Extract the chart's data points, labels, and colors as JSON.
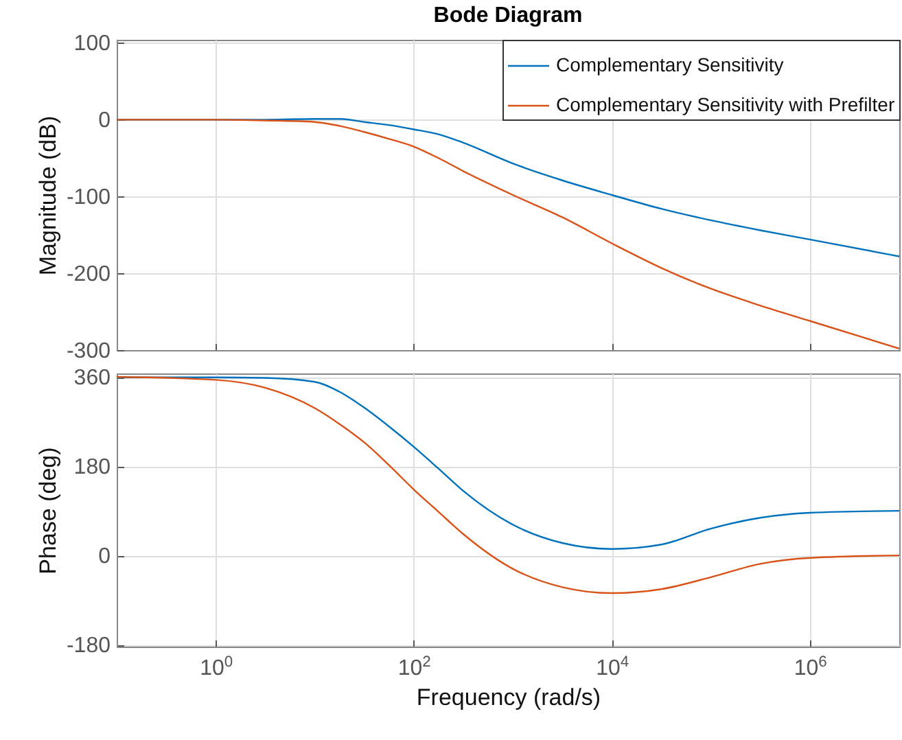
{
  "chart_data": [
    {
      "type": "line",
      "title": "Bode Diagram",
      "ylabel": "Magnitude (dB)",
      "x": [
        0.1,
        1,
        3.162,
        10,
        17.78,
        31.62,
        56.23,
        100,
        177.8,
        316.2,
        1000,
        3162,
        10000,
        31620,
        100000,
        316200,
        1000000,
        8000000
      ],
      "series": [
        {
          "name": "Complementary Sensitivity",
          "color": "#0072bd",
          "values": [
            0,
            0,
            0,
            1,
            1,
            -3,
            -7,
            -12.6,
            -19,
            -30,
            -57,
            -79,
            -98,
            -116,
            -131,
            -144,
            -156,
            -178
          ]
        },
        {
          "name": "Complementary Sensitivity with Prefilter",
          "color": "#d95319",
          "values": [
            0,
            0,
            -1,
            -3,
            -8,
            -16,
            -25,
            -35,
            -50,
            -67,
            -98,
            -127,
            -161,
            -193,
            -220,
            -242,
            -262,
            -298
          ]
        }
      ],
      "log": "x",
      "xlim": [
        0.1,
        8000000
      ],
      "xticks": [
        {
          "value": 1,
          "label": null
        },
        {
          "value": 100,
          "label": null
        },
        {
          "value": 10000,
          "label": null
        },
        {
          "value": 1000000,
          "label": null
        }
      ],
      "ylim": [
        -300,
        104
      ],
      "yticks": [
        -300,
        -200,
        -100,
        0,
        100
      ],
      "grid": true,
      "legend": "top right",
      "tick_labels": "y"
    },
    {
      "type": "line",
      "xlabel": "Frequency  (rad/s)",
      "ylabel": "Phase (deg)",
      "x": [
        0.1,
        1,
        3.162,
        10,
        17.78,
        31.62,
        56.23,
        100,
        177.8,
        316.2,
        1000,
        3162,
        10000,
        31620,
        100000,
        316200,
        1000000,
        8000000
      ],
      "series": [
        {
          "color": "#0072bd",
          "values": [
            359,
            359,
            358,
            350,
            330,
            298,
            260,
            219,
            175,
            130,
            62,
            25,
            13,
            22,
            54,
            76,
            86,
            90
          ]
        },
        {
          "color": "#d95319",
          "values": [
            360,
            354,
            338,
            297,
            265,
            228,
            182,
            133,
            88,
            43,
            -27,
            -64,
            -76,
            -68,
            -44,
            -17,
            -5,
            0
          ]
        }
      ],
      "log": "x",
      "xlim": [
        0.1,
        8000000
      ],
      "xticks": [
        {
          "value": 1,
          "label": "10$^{0}$"
        },
        {
          "value": 100,
          "label": "10$^{2}$"
        },
        {
          "value": 10000,
          "label": "10$^{4}$"
        },
        {
          "value": 1000000,
          "label": "10$^{6}$"
        }
      ],
      "ylim": [
        -184,
        367
      ],
      "yticks": [
        -180,
        0,
        180,
        360
      ],
      "grid": true
    }
  ]
}
